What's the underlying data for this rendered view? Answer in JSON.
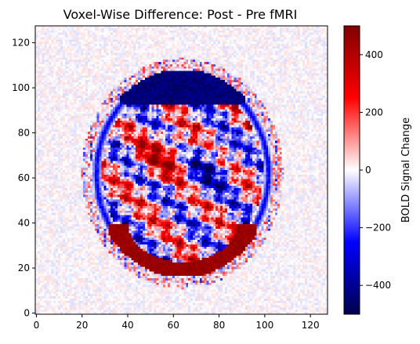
{
  "chart_data": {
    "type": "heatmap",
    "title": "Voxel-Wise Difference: Post - Pre fMRI",
    "xlabel": "",
    "ylabel": "",
    "xlim": [
      0,
      127
    ],
    "ylim": [
      0,
      127
    ],
    "x_ticks": [
      0,
      20,
      40,
      60,
      80,
      100,
      120
    ],
    "y_ticks": [
      0,
      20,
      40,
      60,
      80,
      100,
      120
    ],
    "grid": false,
    "colormap": "seismic",
    "colormap_stops": [
      "#00004c",
      "#0000ff",
      "#ffffff",
      "#ff0000",
      "#800000"
    ],
    "colorbar": {
      "label": "BOLD Signal Change",
      "range": [
        -500,
        500
      ],
      "ticks": [
        -400,
        -200,
        0,
        200,
        400
      ],
      "tick_labels": [
        "−400",
        "−200",
        "0",
        "200",
        "400"
      ]
    },
    "structures": [
      {
        "name": "brain outline rim",
        "center": [
          64,
          62
        ],
        "radii": [
          38,
          44
        ],
        "value": -300
      },
      {
        "name": "posterior red band",
        "center": [
          64,
          40
        ],
        "radii": [
          33,
          24
        ],
        "value": 480
      },
      {
        "name": "anterior blue band",
        "center": [
          64,
          98
        ],
        "radii": [
          30,
          10
        ],
        "value": -480
      },
      {
        "name": "central red core",
        "center": [
          55,
          70
        ],
        "radii": [
          16,
          14
        ],
        "value": 280
      },
      {
        "name": "central blue core",
        "center": [
          76,
          64
        ],
        "radii": [
          14,
          16
        ],
        "value": -260
      }
    ]
  }
}
